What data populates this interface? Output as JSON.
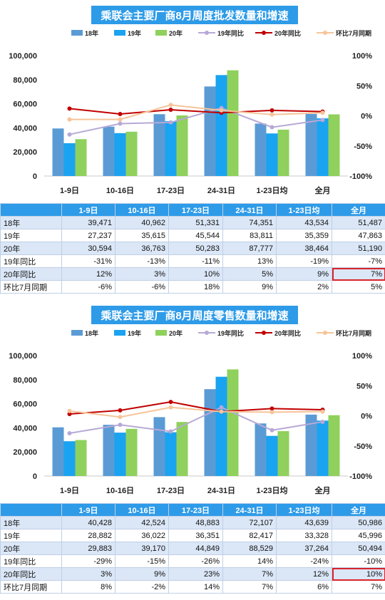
{
  "colors": {
    "s18": "#5b9bd5",
    "s19": "#1aa3f0",
    "s20": "#8fd15c",
    "yoy19": "#b7a9d6",
    "yoy20": "#c00000",
    "mom": "#f6c49a",
    "banner": "#2e9be8",
    "highlight": "#d8232a"
  },
  "chart_data": [
    {
      "type": "bar",
      "title": "乘联会主要厂商8月周度批发数量和增速",
      "categories": [
        "1-9日",
        "10-16日",
        "17-23日",
        "24-31日",
        "1-23日均",
        "全月"
      ],
      "ylim": [
        0,
        100000
      ],
      "y_ticks": [
        "100,000",
        "80,000",
        "60,000",
        "40,000",
        "20,000",
        "0"
      ],
      "y2lim": [
        -100,
        100
      ],
      "y2_ticks": [
        "100%",
        "50%",
        "0%",
        "-50%",
        "-100%"
      ],
      "series": [
        {
          "name": "18年",
          "kind": "bar",
          "values": [
            39471,
            40962,
            51331,
            74351,
            43534,
            51487
          ]
        },
        {
          "name": "19年",
          "kind": "bar",
          "values": [
            27237,
            35615,
            45544,
            83811,
            35359,
            47863
          ]
        },
        {
          "name": "20年",
          "kind": "bar",
          "values": [
            30594,
            36763,
            50283,
            87777,
            38464,
            51190
          ]
        },
        {
          "name": "19年同比",
          "kind": "line",
          "values": [
            -31,
            -13,
            -11,
            13,
            -19,
            -7
          ]
        },
        {
          "name": "20年同比",
          "kind": "line",
          "values": [
            12,
            3,
            10,
            5,
            9,
            7
          ]
        },
        {
          "name": "环比7月同期",
          "kind": "line",
          "values": [
            -6,
            -6,
            18,
            9,
            2,
            5
          ]
        }
      ],
      "legend_position": "top"
    },
    {
      "type": "bar",
      "title": "乘联会主要厂商8月周度零售数量和增速",
      "categories": [
        "1-9日",
        "10-16日",
        "17-23日",
        "24-31日",
        "1-23日均",
        "全月"
      ],
      "ylim": [
        0,
        100000
      ],
      "y_ticks": [
        "100,000",
        "80,000",
        "60,000",
        "40,000",
        "20,000",
        "0"
      ],
      "y2lim": [
        -100,
        100
      ],
      "y2_ticks": [
        "100%",
        "50%",
        "0%",
        "-50%",
        "-100%"
      ],
      "series": [
        {
          "name": "18年",
          "kind": "bar",
          "values": [
            40428,
            42524,
            48883,
            72107,
            43639,
            50986
          ]
        },
        {
          "name": "19年",
          "kind": "bar",
          "values": [
            28882,
            36022,
            36351,
            82417,
            33328,
            45996
          ]
        },
        {
          "name": "20年",
          "kind": "bar",
          "values": [
            29883,
            39170,
            44849,
            88529,
            37264,
            50494
          ]
        },
        {
          "name": "19年同比",
          "kind": "line",
          "values": [
            -29,
            -15,
            -26,
            14,
            -24,
            -10
          ]
        },
        {
          "name": "20年同比",
          "kind": "line",
          "values": [
            3,
            9,
            23,
            7,
            12,
            10
          ]
        },
        {
          "name": "环比7月同期",
          "kind": "line",
          "values": [
            8,
            -2,
            14,
            7,
            6,
            7
          ]
        }
      ],
      "legend_position": "top"
    }
  ],
  "tables": [
    {
      "headers": [
        "",
        "1-9日",
        "10-16日",
        "17-23日",
        "24-31日",
        "1-23日均",
        "全月"
      ],
      "rows": [
        [
          "18年",
          "39,471",
          "40,962",
          "51,331",
          "74,351",
          "43,534",
          "51,487"
        ],
        [
          "19年",
          "27,237",
          "35,615",
          "45,544",
          "83,811",
          "35,359",
          "47,863"
        ],
        [
          "20年",
          "30,594",
          "36,763",
          "50,283",
          "87,777",
          "38,464",
          "51,190"
        ],
        [
          "19年同比",
          "-31%",
          "-13%",
          "-11%",
          "13%",
          "-19%",
          "-7%"
        ],
        [
          "20年同比",
          "12%",
          "3%",
          "10%",
          "5%",
          "9%",
          "7%"
        ],
        [
          "环比7月同期",
          "-6%",
          "-6%",
          "18%",
          "9%",
          "2%",
          "5%"
        ]
      ]
    },
    {
      "headers": [
        "",
        "1-9日",
        "10-16日",
        "17-23日",
        "24-31日",
        "1-23日均",
        "全月"
      ],
      "rows": [
        [
          "18年",
          "40,428",
          "42,524",
          "48,883",
          "72,107",
          "43,639",
          "50,986"
        ],
        [
          "19年",
          "28,882",
          "36,022",
          "36,351",
          "82,417",
          "33,328",
          "45,996"
        ],
        [
          "20年",
          "29,883",
          "39,170",
          "44,849",
          "88,529",
          "37,264",
          "50,494"
        ],
        [
          "19年同比",
          "-29%",
          "-15%",
          "-26%",
          "14%",
          "-24%",
          "-10%"
        ],
        [
          "20年同比",
          "3%",
          "9%",
          "23%",
          "7%",
          "12%",
          "10%"
        ],
        [
          "环比7月同期",
          "8%",
          "-2%",
          "14%",
          "7%",
          "6%",
          "7%"
        ]
      ]
    }
  ]
}
